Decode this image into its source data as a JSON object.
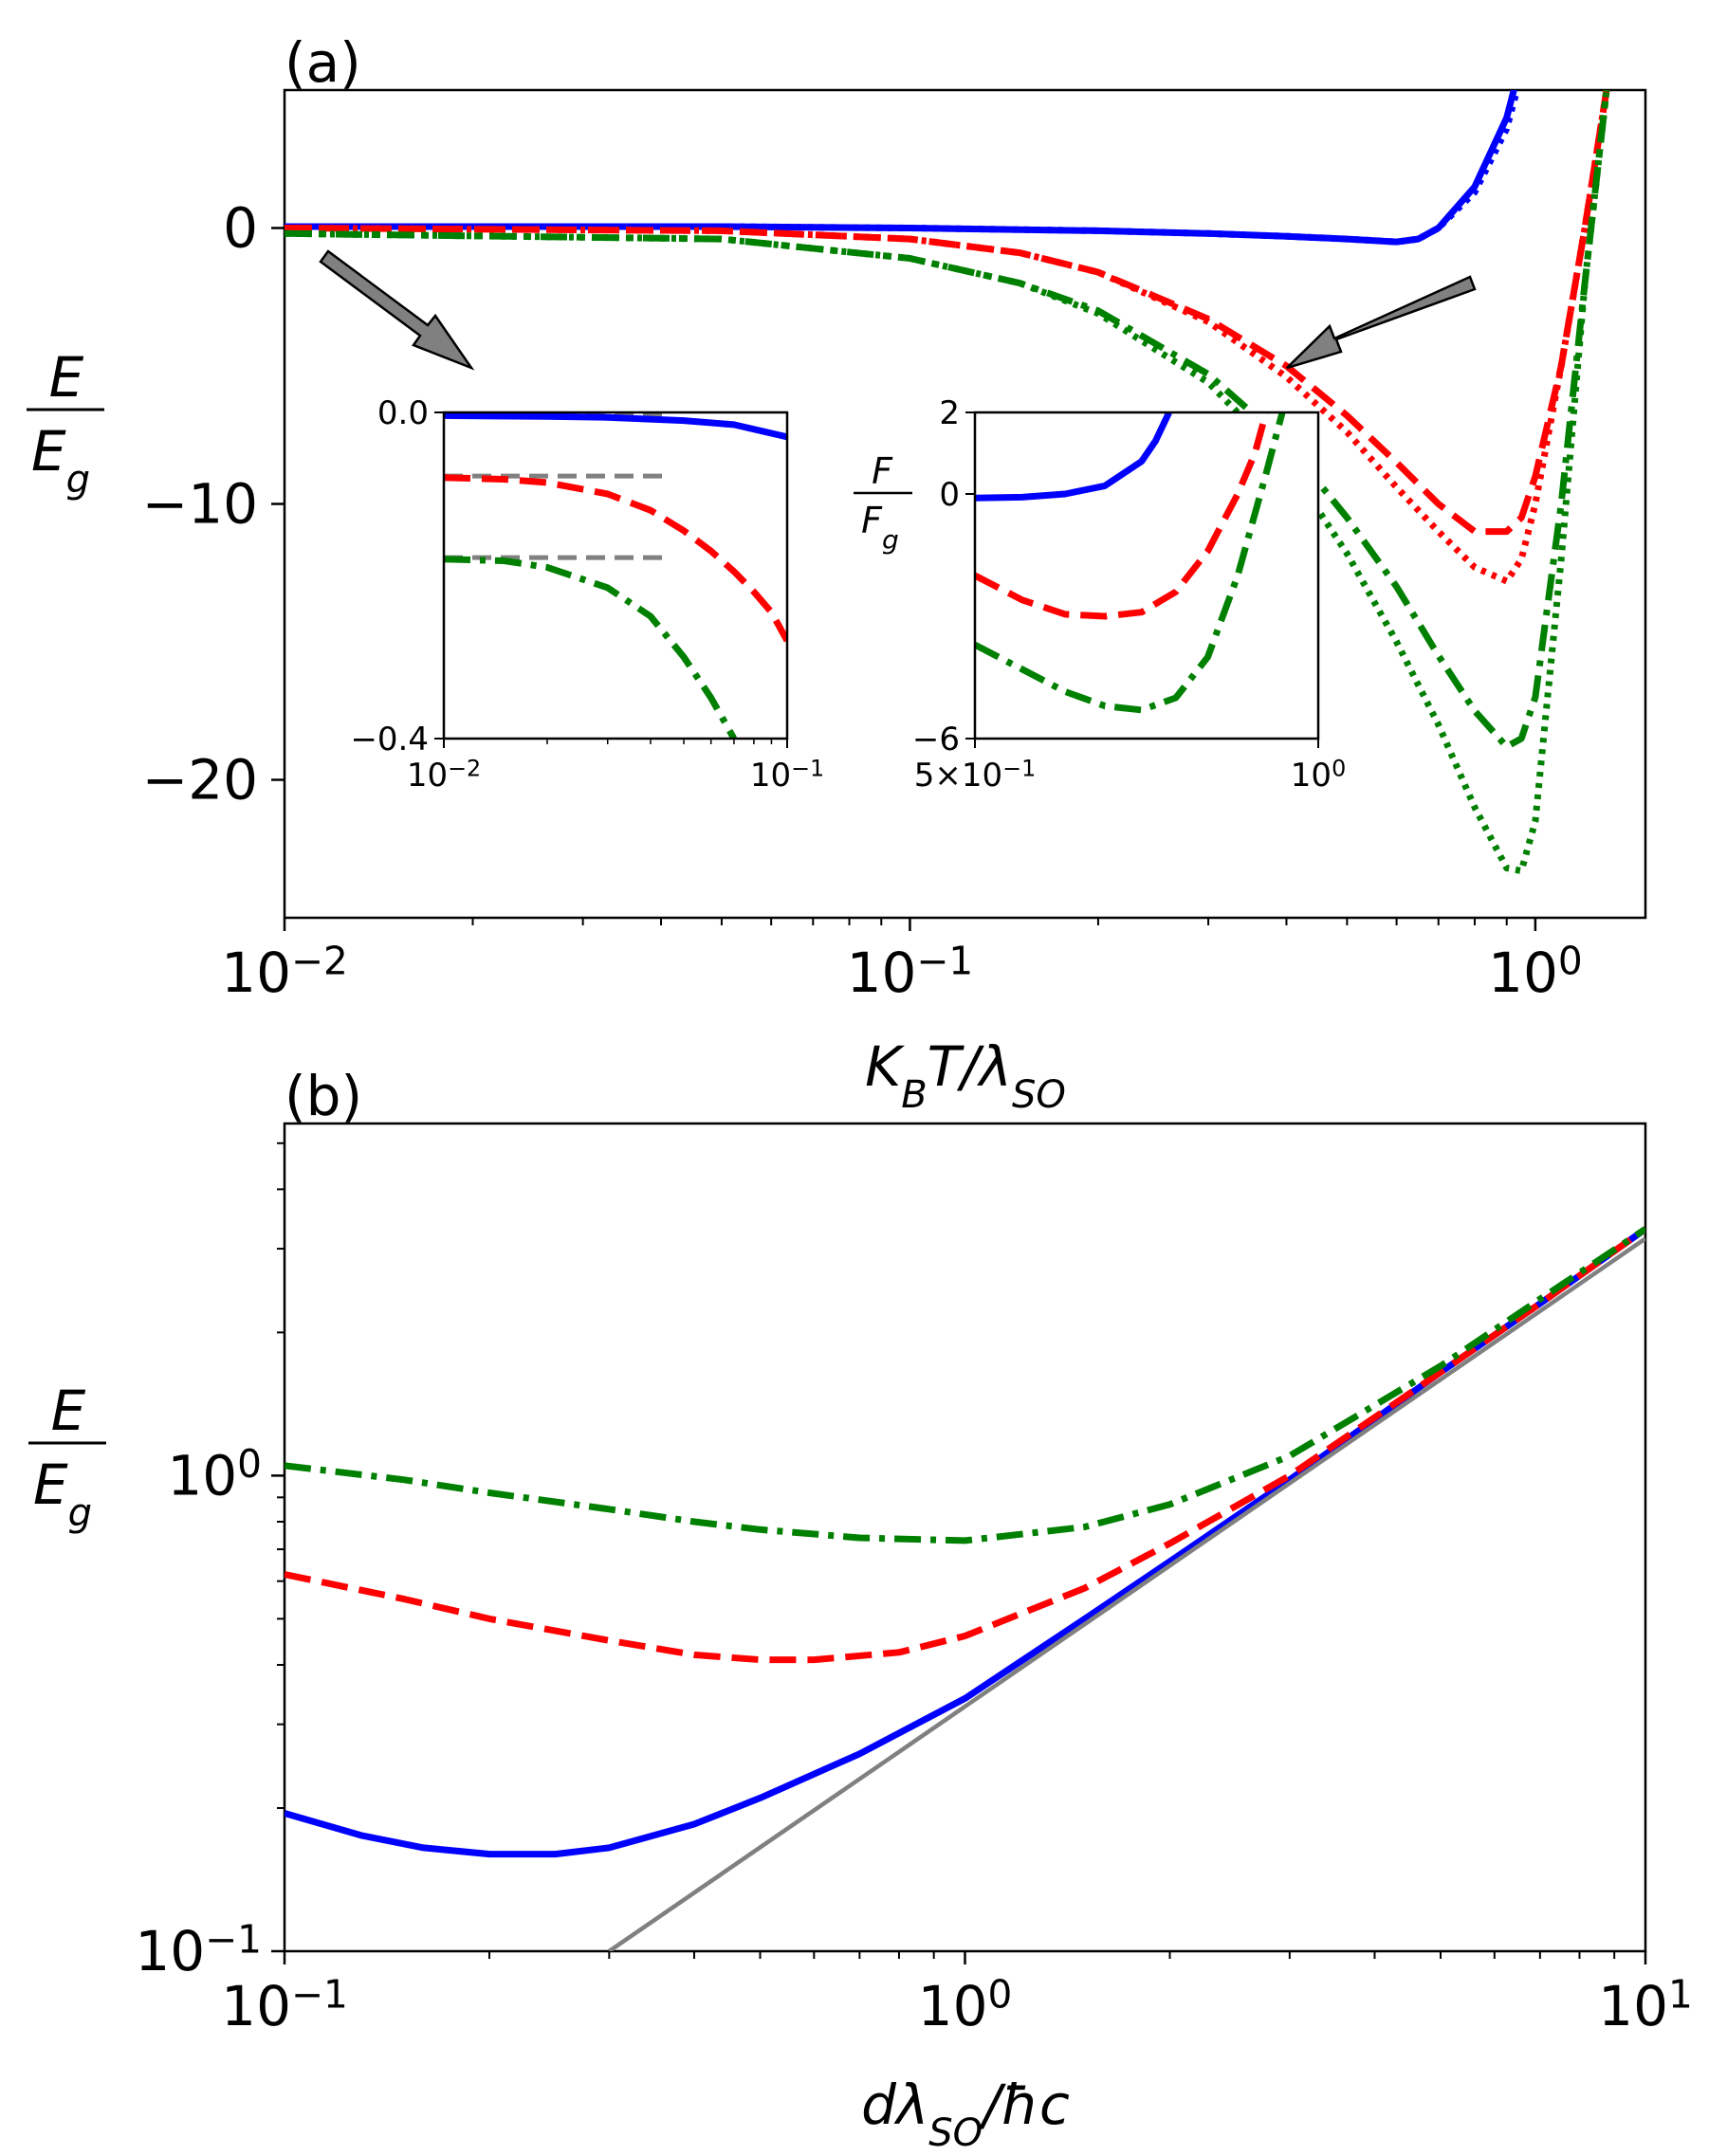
{
  "chart_data": [
    {
      "type": "line",
      "panel_label": "(a)",
      "xlabel": "K_B T/λ_SO",
      "ylabel": "E/E_g",
      "xscale": "log",
      "xlim": [
        0.01,
        1.5
      ],
      "ylim": [
        -25,
        5
      ],
      "yticks": [
        "0",
        "−10",
        "−20"
      ],
      "yticks_values": [
        0,
        -10,
        -20
      ],
      "xticks": [
        "10−2",
        "10−1",
        "100"
      ],
      "xticks_values": [
        0.01,
        0.1,
        1
      ],
      "grid": false,
      "series": [
        {
          "style": "solid",
          "color": "#0000ff",
          "x": [
            0.01,
            0.05,
            0.1,
            0.2,
            0.3,
            0.4,
            0.5,
            0.6,
            0.65,
            0.7,
            0.8,
            0.9,
            1.0,
            1.05
          ],
          "y": [
            0.05,
            0.05,
            0.0,
            -0.1,
            -0.2,
            -0.3,
            -0.4,
            -0.5,
            -0.4,
            0.0,
            1.5,
            4.0,
            8.0,
            10.0
          ]
        },
        {
          "style": "dotted",
          "color": "#0000ff",
          "x": [
            0.01,
            0.05,
            0.1,
            0.2,
            0.3,
            0.4,
            0.5,
            0.6,
            0.65,
            0.7,
            0.8,
            0.9,
            1.0,
            1.05
          ],
          "y": [
            0.05,
            0.05,
            0.0,
            -0.1,
            -0.2,
            -0.3,
            -0.4,
            -0.5,
            -0.4,
            0.0,
            1.3,
            3.6,
            7.5,
            9.5
          ]
        },
        {
          "style": "dashed",
          "color": "#ff0000",
          "x": [
            0.01,
            0.05,
            0.1,
            0.15,
            0.2,
            0.3,
            0.4,
            0.5,
            0.6,
            0.7,
            0.8,
            0.9,
            0.95,
            1.0,
            1.1,
            1.2,
            1.3
          ],
          "y": [
            0.0,
            -0.1,
            -0.4,
            -0.9,
            -1.6,
            -3.3,
            -5.0,
            -6.8,
            -8.5,
            -10.0,
            -11.0,
            -11.0,
            -10.5,
            -9.0,
            -5.0,
            0.0,
            5.0
          ]
        },
        {
          "style": "dotted",
          "color": "#ff0000",
          "x": [
            0.01,
            0.05,
            0.1,
            0.15,
            0.2,
            0.3,
            0.4,
            0.5,
            0.6,
            0.7,
            0.8,
            0.9,
            0.95,
            1.0,
            1.1,
            1.2,
            1.3
          ],
          "y": [
            0.0,
            -0.1,
            -0.4,
            -0.9,
            -1.6,
            -3.4,
            -5.4,
            -7.4,
            -9.4,
            -11.0,
            -12.3,
            -12.8,
            -12.0,
            -10.0,
            -5.0,
            0.0,
            5.0
          ]
        },
        {
          "style": "dashdot",
          "color": "#008000",
          "x": [
            0.01,
            0.05,
            0.1,
            0.15,
            0.2,
            0.3,
            0.4,
            0.5,
            0.6,
            0.7,
            0.8,
            0.9,
            0.95,
            1.0,
            1.1,
            1.2,
            1.3
          ],
          "y": [
            -0.2,
            -0.4,
            -1.1,
            -2.0,
            -3.0,
            -5.3,
            -7.8,
            -10.5,
            -13.0,
            -15.5,
            -17.5,
            -18.8,
            -18.5,
            -17.0,
            -10.0,
            -2.0,
            5.0
          ]
        },
        {
          "style": "dotted",
          "color": "#008000",
          "x": [
            0.01,
            0.05,
            0.1,
            0.15,
            0.2,
            0.3,
            0.4,
            0.5,
            0.6,
            0.7,
            0.8,
            0.9,
            0.95,
            1.0,
            1.1,
            1.2,
            1.3
          ],
          "y": [
            -0.2,
            -0.4,
            -1.1,
            -2.0,
            -3.1,
            -5.6,
            -8.5,
            -11.8,
            -15.0,
            -18.0,
            -21.0,
            -23.2,
            -23.3,
            -21.5,
            -12.0,
            -2.0,
            5.0
          ]
        }
      ],
      "insets": [
        {
          "type": "line",
          "xscale": "log",
          "xlim": [
            0.01,
            0.1
          ],
          "ylim": [
            -0.4,
            0.0
          ],
          "yticks": [
            "0.0",
            "−0.4"
          ],
          "yticks_values": [
            0.0,
            -0.4
          ],
          "xticks": [
            "10−2",
            "10−1"
          ],
          "xticks_values": [
            0.01,
            0.1
          ],
          "reference_lines": [
            {
              "color": "#808080",
              "style": "dashed",
              "y": -0.004,
              "x": [
                0.01,
                0.044
              ]
            },
            {
              "color": "#808080",
              "style": "dashed",
              "y": -0.078,
              "x": [
                0.01,
                0.044
              ]
            },
            {
              "color": "#808080",
              "style": "dashed",
              "y": -0.178,
              "x": [
                0.01,
                0.044
              ]
            }
          ],
          "series": [
            {
              "style": "solid",
              "color": "#0000ff",
              "x": [
                0.01,
                0.02,
                0.03,
                0.05,
                0.07,
                0.1
              ],
              "y": [
                -0.004,
                -0.005,
                -0.006,
                -0.01,
                -0.015,
                -0.03
              ]
            },
            {
              "style": "dashed",
              "color": "#ff0000",
              "x": [
                0.01,
                0.015,
                0.02,
                0.03,
                0.04,
                0.05,
                0.06,
                0.07,
                0.08,
                0.09,
                0.1
              ],
              "y": [
                -0.08,
                -0.082,
                -0.086,
                -0.1,
                -0.12,
                -0.145,
                -0.17,
                -0.195,
                -0.22,
                -0.245,
                -0.28
              ]
            },
            {
              "style": "dashdot",
              "color": "#008000",
              "x": [
                0.01,
                0.015,
                0.02,
                0.03,
                0.04,
                0.05,
                0.06,
                0.07
              ],
              "y": [
                -0.18,
                -0.182,
                -0.19,
                -0.215,
                -0.25,
                -0.3,
                -0.35,
                -0.4
              ]
            }
          ]
        },
        {
          "type": "line",
          "xscale": "log",
          "xlim": [
            0.5,
            1.0
          ],
          "ylim": [
            -6,
            2
          ],
          "ylabel": "F/F_g",
          "yticks": [
            "2",
            "0",
            "−6"
          ],
          "yticks_values": [
            2,
            0,
            -6
          ],
          "xticks": [
            "5×10−1",
            "100"
          ],
          "xticks_values": [
            0.5,
            1.0
          ],
          "series": [
            {
              "style": "solid",
              "color": "#0000ff",
              "x": [
                0.5,
                0.55,
                0.6,
                0.65,
                0.7,
                0.72,
                0.74
              ],
              "y": [
                -0.1,
                -0.08,
                0.0,
                0.2,
                0.8,
                1.3,
                2.0
              ]
            },
            {
              "style": "dashed",
              "color": "#ff0000",
              "x": [
                0.5,
                0.55,
                0.6,
                0.65,
                0.7,
                0.75,
                0.8,
                0.85,
                0.88,
                0.9
              ],
              "y": [
                -2.0,
                -2.6,
                -2.95,
                -3.0,
                -2.9,
                -2.4,
                -1.4,
                0.0,
                1.0,
                2.0
              ]
            },
            {
              "style": "dashdot",
              "color": "#008000",
              "x": [
                0.5,
                0.55,
                0.6,
                0.65,
                0.7,
                0.75,
                0.8,
                0.85,
                0.9,
                0.93
              ],
              "y": [
                -3.7,
                -4.3,
                -4.85,
                -5.2,
                -5.3,
                -5.0,
                -4.0,
                -2.0,
                0.5,
                2.0
              ]
            }
          ]
        }
      ]
    },
    {
      "type": "line",
      "panel_label": "(b)",
      "xlabel": "dλ_SO/ħc",
      "ylabel": "E/E_g",
      "xscale": "log",
      "yscale": "log",
      "xlim": [
        0.1,
        10
      ],
      "ylim": [
        0.1,
        5.5
      ],
      "xticks": [
        "10−1",
        "100",
        "101"
      ],
      "xticks_values": [
        0.1,
        1,
        10
      ],
      "yticks": [
        "10−1",
        "100"
      ],
      "yticks_values": [
        0.1,
        1
      ],
      "grid": false,
      "series": [
        {
          "style": "solid",
          "color": "#0000ff",
          "x": [
            0.1,
            0.13,
            0.16,
            0.2,
            0.25,
            0.3,
            0.4,
            0.5,
            0.7,
            1.0,
            1.5,
            2.0,
            3.0,
            5.0,
            7.0,
            10.0
          ],
          "y": [
            0.195,
            0.175,
            0.165,
            0.16,
            0.16,
            0.165,
            0.185,
            0.21,
            0.26,
            0.34,
            0.5,
            0.66,
            0.98,
            1.65,
            2.3,
            3.3
          ]
        },
        {
          "style": "dashed",
          "color": "#ff0000",
          "x": [
            0.1,
            0.15,
            0.2,
            0.3,
            0.4,
            0.5,
            0.6,
            0.8,
            1.0,
            1.5,
            2.0,
            3.0,
            5.0,
            7.0,
            10.0
          ],
          "y": [
            0.62,
            0.55,
            0.5,
            0.45,
            0.42,
            0.41,
            0.41,
            0.425,
            0.46,
            0.58,
            0.72,
            1.0,
            1.65,
            2.3,
            3.3
          ]
        },
        {
          "style": "dashdot",
          "color": "#008000",
          "x": [
            0.1,
            0.15,
            0.2,
            0.3,
            0.4,
            0.5,
            0.7,
            1.0,
            1.5,
            2.0,
            3.0,
            5.0,
            7.0,
            10.0
          ],
          "y": [
            1.05,
            0.98,
            0.92,
            0.85,
            0.8,
            0.77,
            0.74,
            0.73,
            0.78,
            0.87,
            1.1,
            1.7,
            2.35,
            3.3
          ]
        },
        {
          "style": "solid",
          "color": "#808080",
          "x": [
            0.3,
            10.0
          ],
          "y": [
            0.1,
            3.15
          ]
        }
      ]
    }
  ]
}
